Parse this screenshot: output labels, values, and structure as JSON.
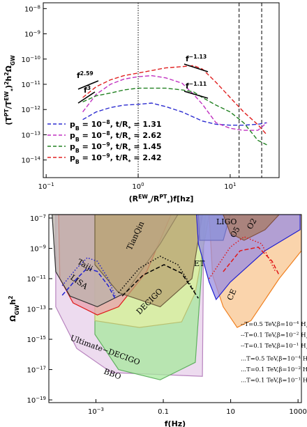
{
  "chart_data": [
    {
      "type": "line",
      "log_x": true,
      "log_y": true,
      "xlabel": [
        {
          "t": "(R"
        },
        {
          "sup": "EW"
        },
        {
          "sub": "*"
        },
        {
          "t": "/R"
        },
        {
          "sup": "PT"
        },
        {
          "sub": "*"
        },
        {
          "t": ")f[hz]"
        }
      ],
      "ylabel": [
        {
          "t": "(T"
        },
        {
          "sup": "PT"
        },
        {
          "t": "/T"
        },
        {
          "sup": "EW"
        },
        {
          "sub": "*"
        },
        {
          "t": ")"
        },
        {
          "sup": "2"
        },
        {
          "t": "h"
        },
        {
          "sup": "2"
        },
        {
          "t": "Ω"
        },
        {
          "sub": "GW"
        }
      ],
      "xlim": [
        0.093,
        34
      ],
      "ylim": [
        2e-15,
        1.7e-08
      ],
      "xticks": [
        {
          "value": 0.1,
          "label": [
            {
              "t": "10"
            },
            {
              "sup": "−1"
            }
          ]
        },
        {
          "value": 1,
          "label": [
            {
              "t": "10"
            },
            {
              "sup": "0"
            }
          ]
        },
        {
          "value": 10,
          "label": [
            {
              "t": "10"
            },
            {
              "sup": "1"
            }
          ]
        }
      ],
      "yticks": [
        {
          "value": 1e-14,
          "label": [
            {
              "t": "10"
            },
            {
              "sup": "−14"
            }
          ]
        },
        {
          "value": 1e-13,
          "label": [
            {
              "t": "10"
            },
            {
              "sup": "−13"
            }
          ]
        },
        {
          "value": 1e-12,
          "label": [
            {
              "t": "10"
            },
            {
              "sup": "−12"
            }
          ]
        },
        {
          "value": 1e-11,
          "label": [
            {
              "t": "10"
            },
            {
              "sup": "−11"
            }
          ]
        },
        {
          "value": 1e-10,
          "label": [
            {
              "t": "10"
            },
            {
              "sup": "−10"
            }
          ]
        },
        {
          "value": 1e-09,
          "label": [
            {
              "t": "10"
            },
            {
              "sup": "−9"
            }
          ]
        },
        {
          "value": 1e-08,
          "label": [
            {
              "t": "10"
            },
            {
              "sup": "−8"
            }
          ]
        }
      ],
      "vlines": [
        {
          "x": 1,
          "style": "dotted"
        },
        {
          "x": 12.5,
          "style": "dashed"
        },
        {
          "x": 22,
          "style": "dashed"
        }
      ],
      "x": [
        0.25,
        0.35,
        0.5,
        0.7,
        1,
        1.4,
        2,
        3,
        4,
        5,
        7,
        10,
        14,
        20,
        25
      ],
      "series": [
        {
          "name": [
            {
              "t": "p"
            },
            {
              "sub": "B"
            },
            {
              "t": " = 10"
            },
            {
              "sup": "−8"
            },
            {
              "t": ", t/R"
            },
            {
              "sub": "*"
            },
            {
              "t": " = 1.31"
            }
          ],
          "color": "#2b2bd0",
          "values": [
            4e-13,
            8e-13,
            1.2e-12,
            1.5e-12,
            1.6e-12,
            1.8e-12,
            1.3e-12,
            8e-13,
            5e-13,
            3.5e-13,
            2.6e-13,
            2.4e-13,
            2.4e-13,
            2.6e-13,
            3e-13
          ]
        },
        {
          "name": [
            {
              "t": "p"
            },
            {
              "sub": "B"
            },
            {
              "t": " = 10"
            },
            {
              "sup": "−8"
            },
            {
              "t": ", t/R"
            },
            {
              "sub": "*"
            },
            {
              "t": " = 2.62"
            }
          ],
          "color": "#c030c0",
          "values": [
            8e-13,
            4e-12,
            1e-11,
            1.6e-11,
            2e-11,
            2.2e-11,
            1.8e-11,
            1.1e-11,
            4e-12,
            1.6e-12,
            3e-13,
            1.8e-13,
            1.5e-13,
            1.5e-13,
            3e-13
          ]
        },
        {
          "name": [
            {
              "t": "p"
            },
            {
              "sub": "B"
            },
            {
              "t": " = 10"
            },
            {
              "sup": "−9"
            },
            {
              "t": ", t/R"
            },
            {
              "sub": "*"
            },
            {
              "t": " = 1.45"
            }
          ],
          "color": "#208020",
          "values": [
            2e-12,
            3.5e-12,
            4.5e-12,
            6e-12,
            7e-12,
            7e-12,
            7e-12,
            6e-12,
            5e-12,
            3e-12,
            1.5e-12,
            8e-13,
            3e-13,
            6e-14,
            4e-14
          ]
        },
        {
          "name": [
            {
              "t": "p"
            },
            {
              "sub": "B"
            },
            {
              "t": " = 10"
            },
            {
              "sup": "−9"
            },
            {
              "t": ", t/R"
            },
            {
              "sub": "*"
            },
            {
              "t": " = 2.42"
            }
          ],
          "color": "#e02020",
          "values": [
            3e-12,
            8e-12,
            1.5e-11,
            2.2e-11,
            2.8e-11,
            3.5e-11,
            4.5e-11,
            5e-11,
            5.5e-11,
            4e-11,
            1.2e-11,
            3e-12,
            8e-13,
            2.5e-13,
            1e-13
          ]
        }
      ],
      "annotations": [
        [
          {
            "t": "f"
          },
          {
            "sup": "2.59"
          }
        ],
        [
          {
            "t": "f"
          },
          {
            "sup": "3"
          }
        ],
        [
          {
            "t": "f"
          },
          {
            "sup": "−1.13"
          }
        ],
        [
          {
            "t": "f"
          },
          {
            "sup": "−1.11"
          }
        ]
      ]
    },
    {
      "type": "line",
      "log_x": true,
      "log_y": true,
      "xlabel": "f(Hz)",
      "ylabel": [
        {
          "t": "Ω"
        },
        {
          "sub": "GW"
        },
        {
          "t": "h"
        },
        {
          "sup": "2"
        }
      ],
      "xlim": [
        4e-05,
        1260
      ],
      "ylim": [
        6.6e-20,
        1.7e-07
      ],
      "xticks": [
        {
          "value": 0.001,
          "label": [
            {
              "t": "10"
            },
            {
              "sup": "−3"
            }
          ]
        },
        0.1,
        10,
        1000
      ],
      "yticks": [
        {
          "value": 1e-19,
          "label": [
            {
              "t": "10"
            },
            {
              "sup": "−19"
            }
          ]
        },
        {
          "value": 1e-17,
          "label": [
            {
              "t": "10"
            },
            {
              "sup": "−17"
            }
          ]
        },
        {
          "value": 1e-15,
          "label": [
            {
              "t": "10"
            },
            {
              "sup": "−15"
            }
          ]
        },
        {
          "value": 1e-13,
          "label": [
            {
              "t": "10"
            },
            {
              "sup": "−13"
            }
          ]
        },
        {
          "value": 1e-11,
          "label": [
            {
              "t": "10"
            },
            {
              "sup": "−11"
            }
          ]
        },
        {
          "value": 1e-09,
          "label": [
            {
              "t": "10"
            },
            {
              "sup": "−9"
            }
          ]
        },
        {
          "value": 1e-07,
          "label": [
            {
              "t": "10"
            },
            {
              "sup": "−7"
            }
          ]
        }
      ],
      "regions": [
        {
          "name": "Ultimate−DECIGO",
          "color": "#e7cfe9",
          "edge": "#b884bf",
          "x": [
            6.4e-05,
            6.4e-05,
            0.00027,
            0.0029,
            1.45,
            1.6
          ],
          "y": [
            1.7e-07,
            1.4e-13,
            2.5e-16,
            6.3e-18,
            3.6e-18,
            1.7e-07
          ]
        },
        {
          "name": "BBO",
          "color": "#a6e89c",
          "edge": "#60b060",
          "x": [
            0.00093,
            0.00093,
            0.0047,
            0.081,
            0.89,
            1.8
          ],
          "y": [
            1.7e-07,
            2.1e-15,
            1e-17,
            2.1e-18,
            3e-17,
            1.7e-07
          ]
        },
        {
          "name": "DECIGO",
          "color": "#e4efa6",
          "edge": "#b8c070",
          "x": [
            0.00093,
            0.00093,
            0.0195,
            0.35,
            0.89,
            2.3
          ],
          "y": [
            1.7e-07,
            1.7e-14,
            6e-15,
            1.4e-14,
            1.2e-12,
            1.7e-07
          ]
        },
        {
          "name": "LISA",
          "color": "#e8a0ae",
          "edge": "#e01818",
          "x": [
            7.8e-05,
            8.5e-05,
            0.00021,
            0.0011,
            0.0047,
            0.032,
            0.17
          ],
          "y": [
            1.7e-07,
            1e-11,
            2.5e-13,
            4e-14,
            1.4e-13,
            2.9e-11,
            1.7e-07
          ]
        },
        {
          "name": "Taiji",
          "color": "#b9b2aa",
          "edge": "#303030",
          "x": [
            5e-05,
            6.4e-05,
            0.00017,
            0.0011,
            0.0076,
            0.081,
            0.27
          ],
          "y": [
            1.7e-07,
            2.9e-11,
            7.1e-13,
            1.4e-13,
            1.2e-12,
            2e-09,
            1.7e-07
          ]
        },
        {
          "name": "TianQin",
          "color": "#b8a272",
          "edge": "#706040",
          "x": [
            0.00093,
            0.00093,
            0.0047,
            0.081,
            0.71,
            1.45
          ],
          "y": [
            1.7e-07,
            8.3e-11,
            1.2e-12,
            1.4e-13,
            1e-11,
            1.7e-07
          ]
        },
        {
          "name": "CE",
          "color": "#f8c690",
          "edge": "#f08020",
          "x": [
            2.3,
            2.9,
            6,
            15.6,
            40,
            275,
            1260,
            1260
          ],
          "y": [
            1.7e-07,
            1.7e-11,
            1.4e-13,
            6e-15,
            1.7e-14,
            1e-11,
            6.9e-10,
            1.7e-07
          ]
        },
        {
          "name": "ET",
          "color": "#9a8ee0",
          "edge": "#2020d0",
          "x": [
            0.97,
            1.1,
            2.3,
            3.7,
            9.7,
            105,
            1150,
            1150
          ],
          "y": [
            1.7e-07,
            2e-09,
            5.9e-12,
            4.2e-13,
            5.9e-12,
            6.9e-10,
            1.7e-08,
            1.7e-07
          ]
        },
        {
          "name": "LIGO",
          "color": "#8a90d8",
          "edge": "#7070c0",
          "x": [
            1.1,
            1.2,
            6,
            9.7
          ],
          "y": [
            1.7e-07,
            3.4e-09,
            3.4e-09,
            1.7e-07
          ]
        },
        {
          "name": "O2",
          "color": "#a77a60",
          "edge": "#805040",
          "x": [
            6,
            9.7,
            25,
            105,
            275
          ],
          "y": [
            1.7e-07,
            9.8e-09,
            3.4e-09,
            1.7e-08,
            1.7e-07
          ]
        }
      ],
      "annotations": [
        "O5"
      ],
      "series": [
        {
          "name": [
            {
              "t": "--T=0.5 TeV,β=10"
            },
            {
              "sup": "−4"
            },
            {
              "t": " H"
            },
            {
              "sub": "*"
            }
          ],
          "color": "#e01818",
          "style": "dashed",
          "x": [
            6,
            19,
            66,
            170,
            275
          ],
          "values": [
            2.9e-11,
            6.9e-10,
            1.2e-09,
            1.4e-10,
            1.7e-11
          ]
        },
        {
          "name": [
            {
              "t": "--T=0.1 TeV,β=10"
            },
            {
              "sup": "−2"
            },
            {
              "t": " H"
            },
            {
              "sub": "*"
            }
          ],
          "color": "#000000",
          "style": "dashed",
          "x": [
            0.006,
            0.025,
            0.105,
            0.35,
            1.1
          ],
          "values": [
            7.1e-13,
            1.7e-11,
            8.3e-11,
            2.3e-11,
            5.1e-13
          ]
        },
        {
          "name": [
            {
              "t": "--T=0.1 TeV,β=10"
            },
            {
              "sup": "−1"
            },
            {
              "t": " H"
            },
            {
              "sub": "*"
            }
          ],
          "color": "#2020d0",
          "style": "dashed",
          "x": [
            0.0001,
            0.00027,
            0.00055,
            0.0011,
            0.0023,
            0.0037
          ],
          "values": [
            8e-13,
            1e-11,
            4.9e-11,
            3e-11,
            3.5e-12,
            5e-13
          ]
        },
        {
          "name": [
            {
              "t": "...T=0.5 TeV,β=10"
            },
            {
              "sup": "−4"
            },
            {
              "t": " H"
            },
            {
              "sub": "*"
            }
          ],
          "color": "#e01818",
          "style": "dotted",
          "x": [
            2.3,
            9.7,
            25,
            83,
            214
          ],
          "values": [
            1e-11,
            1.2e-09,
            5.8e-09,
            2e-09,
            2.9e-11
          ]
        },
        {
          "name": [
            {
              "t": "...T=0.1 TeV,β=10"
            },
            {
              "sup": "−2"
            },
            {
              "t": " H"
            },
            {
              "sub": "*"
            }
          ],
          "color": "#000000",
          "style": "dotted",
          "x": [
            0.0047,
            0.0195,
            0.081,
            0.27,
            0.89
          ],
          "values": [
            1.2e-12,
            4.9e-11,
            3e-10,
            8.3e-11,
            1.2e-12
          ]
        },
        {
          "name": [
            {
              "t": "...T=0.1 TeV,β=10"
            },
            {
              "sup": "−1"
            },
            {
              "t": " H"
            },
            {
              "sub": "*"
            }
          ],
          "color": "#2020d0",
          "style": "dotted",
          "x": [
            0.0001,
            0.00027,
            0.00055,
            0.0011,
            0.0023,
            0.0037
          ],
          "values": [
            3.5e-12,
            4.9e-11,
            2.4e-10,
            1.4e-10,
            1e-11,
            7.1e-13
          ]
        }
      ]
    }
  ]
}
